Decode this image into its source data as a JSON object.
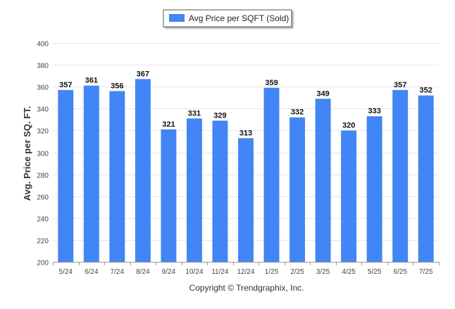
{
  "chart_data": {
    "type": "bar",
    "categories": [
      "5/24",
      "6/24",
      "7/24",
      "8/24",
      "9/24",
      "10/24",
      "11/24",
      "12/24",
      "1/25",
      "2/25",
      "3/25",
      "4/25",
      "5/25",
      "6/25",
      "7/25"
    ],
    "series": [
      {
        "name": "Avg Price per SQFT (Sold)",
        "values": [
          357,
          361,
          356,
          367,
          321,
          331,
          329,
          313,
          359,
          332,
          349,
          320,
          333,
          357,
          352
        ],
        "color": "#4285f4"
      }
    ],
    "ylabel": "Avg. Price per SQ. FT.",
    "xlabel": "",
    "ylim": [
      200,
      400
    ],
    "yticks": [
      200,
      220,
      240,
      260,
      280,
      300,
      320,
      340,
      360,
      380,
      400
    ],
    "grid": true,
    "legend": "top-center",
    "data_labels": true
  },
  "footer": {
    "copyright": "Copyright © Trendgraphix, Inc."
  }
}
